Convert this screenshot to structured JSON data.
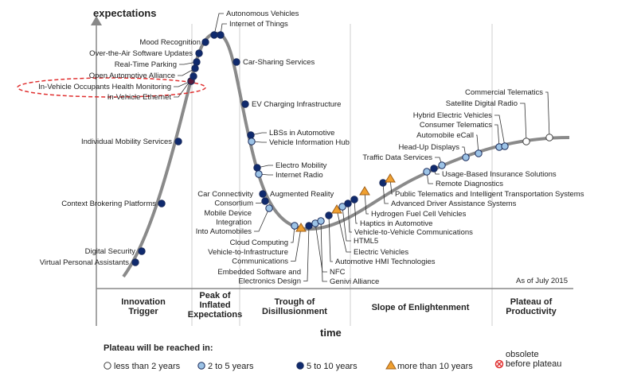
{
  "axes": {
    "y_label": "expectations",
    "x_label": "time"
  },
  "as_of": "As of July 2015",
  "phases": [
    [
      "Innovation",
      "Trigger"
    ],
    [
      "Peak of",
      "Inflated",
      "Expectations"
    ],
    [
      "Trough of",
      "Disillusionment"
    ],
    [
      "Slope of Enlightenment"
    ],
    [
      "Plateau of",
      "Productivity"
    ]
  ],
  "legend": {
    "title": "Plateau will be reached in:",
    "items": [
      {
        "label": "less than 2 years",
        "marker": "white-circle"
      },
      {
        "label": "2 to 5 years",
        "marker": "lightblue-circle"
      },
      {
        "label": "5 to 10 years",
        "marker": "navy-circle"
      },
      {
        "label": "more than 10 years",
        "marker": "orange-triangle"
      },
      {
        "label": "obsolete before plateau",
        "label_lines": [
          "obsolete",
          "before plateau"
        ],
        "marker": "red-x-circle"
      }
    ]
  },
  "colors": {
    "lt2": "#ffffff",
    "2to5": "#9cc3e6",
    "5to10": "#0f2a6e",
    "gt10": "#f0a030",
    "obsolete": "#e03030",
    "highlight": "#e03030"
  },
  "technologies": [
    {
      "label": [
        "Autonomous Vehicles"
      ],
      "cat": "5to10"
    },
    {
      "label": [
        "Internet of Things"
      ],
      "cat": "5to10"
    },
    {
      "label": [
        "Mood Recognition"
      ],
      "cat": "5to10"
    },
    {
      "label": [
        "Over-the-Air Software Updates"
      ],
      "cat": "5to10"
    },
    {
      "label": [
        "Real-Time Parking"
      ],
      "cat": "5to10"
    },
    {
      "label": [
        "Open Automotive Alliance"
      ],
      "cat": "5to10"
    },
    {
      "label": [
        "In-Vehicle Occupants Health Monitoring"
      ],
      "cat": "5to10",
      "highlighted": true
    },
    {
      "label": [
        "In-Vehicle Ethernet"
      ],
      "cat": "5to10"
    },
    {
      "label": [
        "Individual Mobility Services"
      ],
      "cat": "5to10"
    },
    {
      "label": [
        "Context Brokering Platforms"
      ],
      "cat": "5to10"
    },
    {
      "label": [
        "Digital Security"
      ],
      "cat": "5to10"
    },
    {
      "label": [
        "Virtual Personal Assistants"
      ],
      "cat": "5to10"
    },
    {
      "label": [
        "Car-Sharing Services"
      ],
      "cat": "5to10"
    },
    {
      "label": [
        "EV Charging Infrastructure"
      ],
      "cat": "5to10"
    },
    {
      "label": [
        "LBSs in Automotive"
      ],
      "cat": "5to10"
    },
    {
      "label": [
        "Vehicle Information Hub"
      ],
      "cat": "2to5"
    },
    {
      "label": [
        "Electro Mobility"
      ],
      "cat": "5to10"
    },
    {
      "label": [
        "Internet Radio"
      ],
      "cat": "2to5"
    },
    {
      "label": [
        "Augmented Reality"
      ],
      "cat": "5to10"
    },
    {
      "label": [
        "Car Connectivity",
        "Consortium"
      ],
      "cat": "5to10"
    },
    {
      "label": [
        "Mobile Device",
        "Integration",
        "Into Automobiles"
      ],
      "cat": "2to5"
    },
    {
      "label": [
        "Cloud Computing"
      ],
      "cat": "2to5"
    },
    {
      "label": [
        "Vehicle-to-Infrastructure",
        "Communications"
      ],
      "cat": "gt10"
    },
    {
      "label": [
        "Embedded Software and",
        "Electronics Design"
      ],
      "cat": "5to10"
    },
    {
      "label": [
        "NFC"
      ],
      "cat": "2to5"
    },
    {
      "label": [
        "Genivi Alliance"
      ],
      "cat": "2to5"
    },
    {
      "label": [
        "Automotive HMI Technologies"
      ],
      "cat": "5to10"
    },
    {
      "label": [
        "Electric Vehicles"
      ],
      "cat": "gt10"
    },
    {
      "label": [
        "HTML5"
      ],
      "cat": "2to5"
    },
    {
      "label": [
        "Vehicle-to-Vehicle Communications"
      ],
      "cat": "5to10"
    },
    {
      "label": [
        "Haptics in Automotive"
      ],
      "cat": "5to10"
    },
    {
      "label": [
        "Hydrogen Fuel Cell Vehicles"
      ],
      "cat": "gt10"
    },
    {
      "label": [
        "Advanced Driver Assistance Systems"
      ],
      "cat": "5to10"
    },
    {
      "label": [
        "Public Telematics and Intelligent Transportation Systems"
      ],
      "cat": "gt10"
    },
    {
      "label": [
        "Remote Diagnostics"
      ],
      "cat": "2to5"
    },
    {
      "label": [
        "Usage-Based Insurance Solutions"
      ],
      "cat": "5to10"
    },
    {
      "label": [
        "Traffic Data Services"
      ],
      "cat": "2to5"
    },
    {
      "label": [
        "Head-Up Displays"
      ],
      "cat": "2to5"
    },
    {
      "label": [
        "Automobile eCall"
      ],
      "cat": "2to5"
    },
    {
      "label": [
        "Consumer Telematics"
      ],
      "cat": "2to5"
    },
    {
      "label": [
        "Hybrid Electric Vehicles"
      ],
      "cat": "2to5"
    },
    {
      "label": [
        "Satellite Digital Radio"
      ],
      "cat": "lt2"
    },
    {
      "label": [
        "Commercial Telematics"
      ],
      "cat": "lt2"
    }
  ]
}
